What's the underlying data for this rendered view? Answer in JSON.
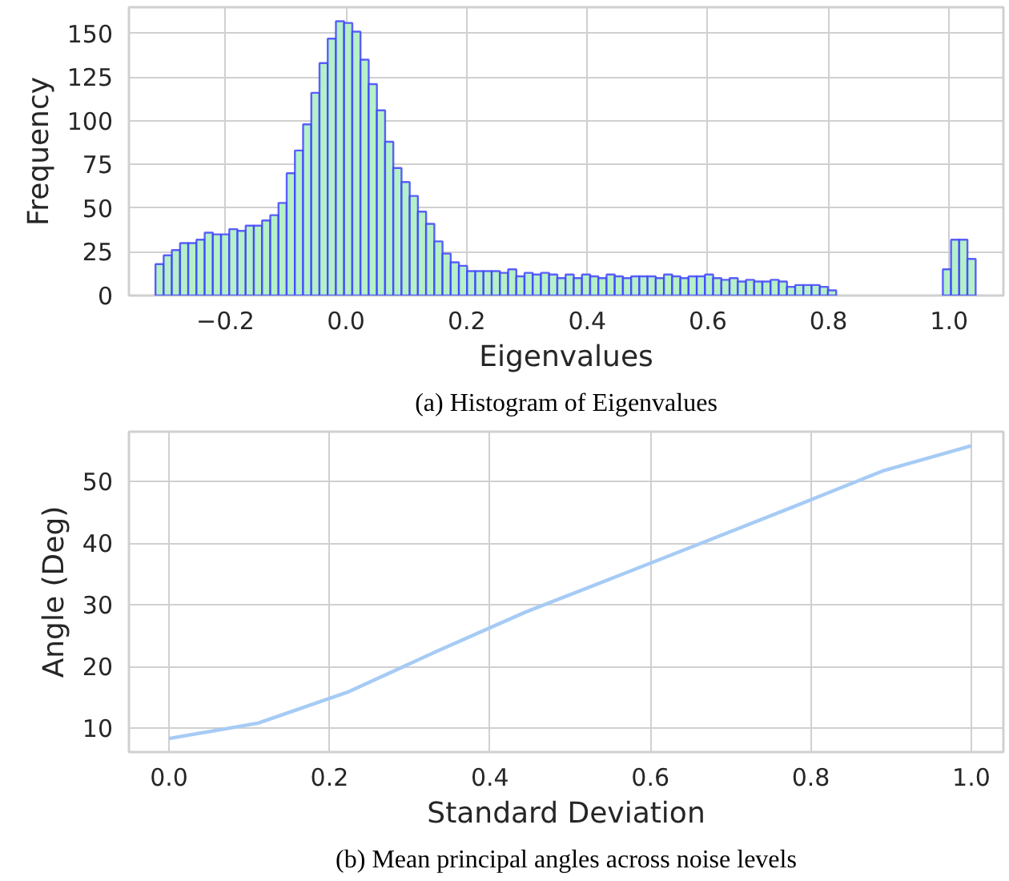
{
  "chart_data": [
    {
      "type": "histogram",
      "xlabel": "Eigenvalues",
      "ylabel": "Frequency",
      "color": "#b4f0c8",
      "bins": [
        -0.316,
        -0.3024,
        -0.2888,
        -0.2752,
        -0.2616,
        -0.248,
        -0.2344,
        -0.2208,
        -0.2072,
        -0.1936,
        -0.18,
        -0.1664,
        -0.1528,
        -0.1392,
        -0.1256,
        -0.112,
        -0.0984,
        -0.0848,
        -0.0712,
        -0.0576,
        -0.044,
        -0.0304,
        -0.0168,
        -0.0032,
        0.0104,
        0.024,
        0.0376,
        0.0512,
        0.0648,
        0.0784,
        0.092,
        0.1056,
        0.1192,
        0.1328,
        0.1464,
        0.16,
        0.1736,
        0.1872,
        0.2008,
        0.2144,
        0.228,
        0.2416,
        0.2552,
        0.2688,
        0.2824,
        0.296,
        0.3096,
        0.3232,
        0.3368,
        0.3504,
        0.364,
        0.3776,
        0.3912,
        0.4048,
        0.4184,
        0.432,
        0.4456,
        0.4592,
        0.4728,
        0.4864,
        0.5,
        0.5136,
        0.5272,
        0.5408,
        0.5544,
        0.568,
        0.5816,
        0.5952,
        0.6088,
        0.6224,
        0.636,
        0.6496,
        0.6632,
        0.6768,
        0.6904,
        0.704,
        0.7176,
        0.7312,
        0.7448,
        0.7584,
        0.772,
        0.7856,
        0.7992,
        0.8128,
        0.8264,
        0.84,
        0.8536,
        0.8672,
        0.8808,
        0.8944,
        0.908,
        0.9216,
        0.9352,
        0.9488,
        0.9624,
        0.976,
        0.9896,
        1.0032,
        1.0168,
        1.0304,
        1.044
      ],
      "values": [
        18,
        23,
        26,
        30,
        30,
        32,
        36,
        35,
        35,
        38,
        37,
        40,
        40,
        43,
        46,
        53,
        70,
        83,
        98,
        116,
        133,
        147,
        157,
        156,
        151,
        135,
        121,
        106,
        88,
        73,
        65,
        57,
        48,
        41,
        31,
        24,
        19,
        17,
        14,
        14,
        14,
        14,
        13,
        15,
        11,
        13,
        12,
        13,
        12,
        10,
        12,
        10,
        12,
        11,
        10,
        12,
        11,
        10,
        11,
        11,
        11,
        10,
        12,
        11,
        10,
        11,
        11,
        12,
        10,
        9,
        10,
        8,
        9,
        8,
        8,
        9,
        8,
        5,
        6,
        6,
        6,
        5,
        3,
        0,
        0,
        0,
        0,
        0,
        0,
        0,
        0,
        0,
        0,
        0,
        0,
        0,
        15,
        32,
        32,
        21
      ],
      "xlim": [
        -0.36,
        1.09
      ],
      "xticks": [
        {
          "value": -0.2,
          "label": "−0.2"
        },
        {
          "value": 0,
          "label": "0.0"
        },
        0.2,
        0.4,
        0.6,
        0.8,
        {
          "value": 1,
          "label": "1.0"
        }
      ],
      "ylim": [
        0,
        165
      ],
      "yticks": [
        0,
        25,
        50,
        75,
        100,
        125,
        150
      ],
      "grid": true,
      "annotations": [
        "(a) Histogram of Eigenvalues"
      ]
    },
    {
      "type": "line",
      "xlabel": "Standard Deviation",
      "ylabel": "Angle (Deg)",
      "x": [
        0,
        0.111,
        0.222,
        0.333,
        0.444,
        0.556,
        0.667,
        0.778,
        0.889,
        1.0
      ],
      "series": [
        {
          "color": "#a6cbf5",
          "values": [
            8.3,
            10.8,
            15.8,
            22.4,
            28.8,
            34.5,
            40.2,
            45.9,
            51.7,
            55.8
          ]
        }
      ],
      "xlim": [
        -0.05,
        1.04
      ],
      "xticks": [
        {
          "value": 0,
          "label": "0.0"
        },
        0.2,
        0.4,
        0.6,
        0.8,
        {
          "value": 1,
          "label": "1.0"
        }
      ],
      "ylim": [
        6.1,
        58.1
      ],
      "yticks": [
        10,
        20,
        30,
        40,
        50
      ],
      "grid": true,
      "marker": "none",
      "line_style": "solid",
      "annotations": [
        "(b) Mean principal angles across noise levels"
      ]
    }
  ]
}
